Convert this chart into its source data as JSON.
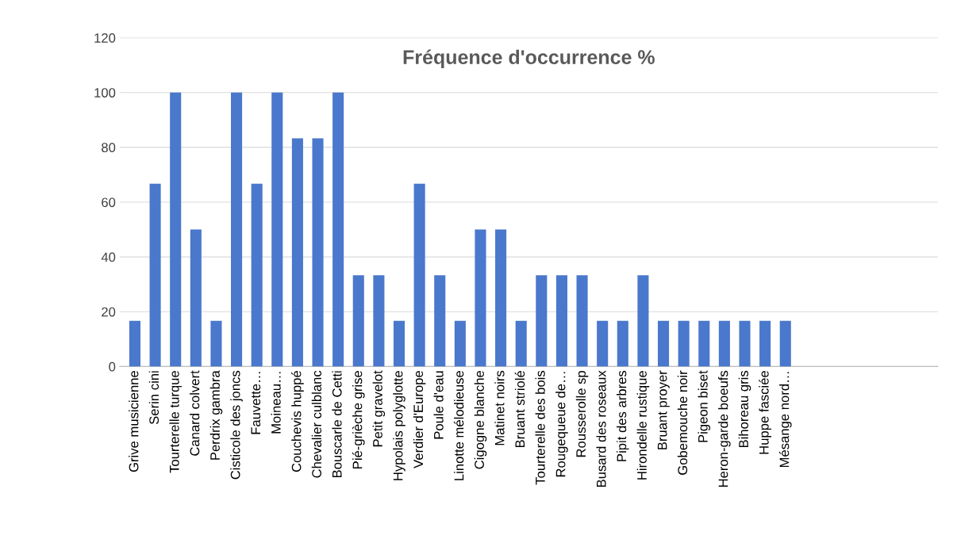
{
  "chart_data": {
    "type": "bar",
    "title": "Fréquence d'occurrence %",
    "categories": [
      "Grive musicienne",
      "Serin cini",
      "Tourterelle turque",
      "Canard colvert",
      "Perdrix gambra",
      "Cisticole des joncs",
      "Fauvette…",
      "Moineau…",
      "Couchevis huppé",
      "Chevalier culblanc",
      "Bouscarle de Cetti",
      "Pié-grièche grise",
      "Petit gravelot",
      "Hypolais polyglotte",
      "Verdier d'Europe",
      "Poule d'eau",
      "Linotte mélodieuse",
      "Cigogne blanche",
      "Matinet noirs",
      "Bruant striolé",
      "Tourterelle des bois",
      "Rougequeue de…",
      "Rousserolle sp",
      "Busard des roseaux",
      "Pipit des arbres",
      "Hirondelle rustique",
      "Bruant proyer",
      "Gobemouche noir",
      "Pigeon biset",
      "Heron-garde boeufs",
      "Bihoreau gris",
      "Huppe fasciée",
      "Mésange nord…",
      null,
      null,
      null,
      null,
      null,
      null,
      null
    ],
    "values": [
      16.7,
      66.7,
      100,
      50,
      16.7,
      100,
      66.7,
      100,
      83.3,
      83.3,
      100,
      33.3,
      33.3,
      16.7,
      66.7,
      33.3,
      16.7,
      50,
      50,
      16.7,
      33.3,
      33.3,
      33.3,
      16.7,
      16.7,
      33.3,
      16.7,
      16.7,
      16.7,
      16.7,
      16.7,
      16.7,
      16.7,
      null,
      null,
      null,
      null,
      null,
      null,
      null
    ],
    "color": "#4a78cc",
    "ylim": [
      0,
      120
    ],
    "yticks": [
      0,
      20,
      40,
      60,
      80,
      100,
      120
    ],
    "grid": "y",
    "legend": false
  }
}
